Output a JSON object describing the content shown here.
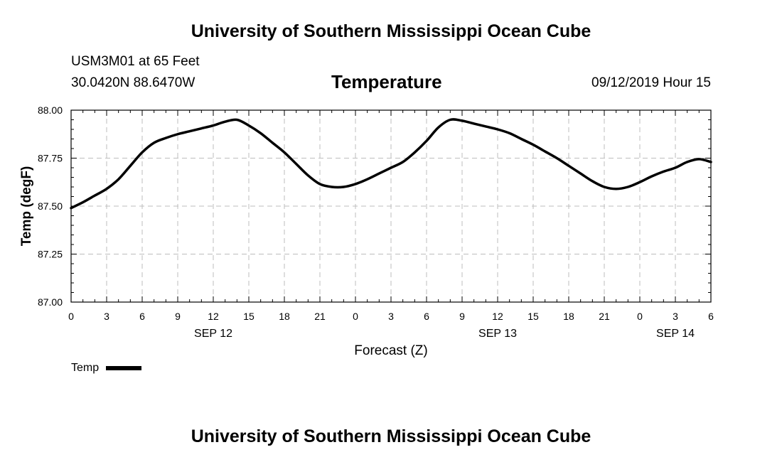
{
  "header": {
    "title": "University of Southern Mississippi Ocean Cube",
    "station": "USM3M01 at 65 Feet",
    "coords": "30.0420N 88.6470W",
    "variable": "Temperature",
    "run_time": "09/12/2019 Hour 15"
  },
  "footer": {
    "title": "University of Southern Mississippi Ocean Cube"
  },
  "legend": {
    "label": "Temp"
  },
  "chart_data": {
    "type": "line",
    "title": "Temperature",
    "xlabel": "Forecast (Z)",
    "ylabel": "Temp (degF)",
    "xlim": [
      0,
      54
    ],
    "ylim": [
      87.0,
      88.0
    ],
    "grid": true,
    "legend": "bottom-left",
    "yticks": [
      {
        "value": 87.0,
        "label": "87.00"
      },
      {
        "value": 87.25,
        "label": "87.25"
      },
      {
        "value": 87.5,
        "label": "87.50"
      },
      {
        "value": 87.75,
        "label": "87.75"
      },
      {
        "value": 88.0,
        "label": "88.00"
      }
    ],
    "xticks": [
      {
        "value": 0,
        "label": "0"
      },
      {
        "value": 3,
        "label": "3"
      },
      {
        "value": 6,
        "label": "6"
      },
      {
        "value": 9,
        "label": "9"
      },
      {
        "value": 12,
        "label": "12"
      },
      {
        "value": 15,
        "label": "15"
      },
      {
        "value": 18,
        "label": "18"
      },
      {
        "value": 21,
        "label": "21"
      },
      {
        "value": 24,
        "label": "0"
      },
      {
        "value": 27,
        "label": "3"
      },
      {
        "value": 30,
        "label": "6"
      },
      {
        "value": 33,
        "label": "9"
      },
      {
        "value": 36,
        "label": "12"
      },
      {
        "value": 39,
        "label": "15"
      },
      {
        "value": 42,
        "label": "18"
      },
      {
        "value": 45,
        "label": "21"
      },
      {
        "value": 48,
        "label": "0"
      },
      {
        "value": 51,
        "label": "3"
      },
      {
        "value": 54,
        "label": "6"
      }
    ],
    "date_labels": [
      {
        "value": 12,
        "label": "SEP 12"
      },
      {
        "value": 36,
        "label": "SEP 13"
      },
      {
        "value": 51,
        "label": "SEP 14"
      }
    ],
    "series": [
      {
        "name": "Temp",
        "x": [
          0,
          1,
          2,
          3,
          4,
          5,
          6,
          7,
          8,
          9,
          10,
          11,
          12,
          13,
          14,
          15,
          16,
          17,
          18,
          19,
          20,
          21,
          22,
          23,
          24,
          25,
          26,
          27,
          28,
          29,
          30,
          31,
          32,
          33,
          34,
          35,
          36,
          37,
          38,
          39,
          40,
          41,
          42,
          43,
          44,
          45,
          46,
          47,
          48,
          49,
          50,
          51,
          52,
          53,
          54
        ],
        "values": [
          87.49,
          87.52,
          87.555,
          87.59,
          87.64,
          87.71,
          87.78,
          87.83,
          87.855,
          87.875,
          87.89,
          87.905,
          87.92,
          87.94,
          87.95,
          87.92,
          87.88,
          87.83,
          87.78,
          87.72,
          87.66,
          87.615,
          87.6,
          87.6,
          87.615,
          87.64,
          87.67,
          87.7,
          87.73,
          87.78,
          87.84,
          87.91,
          87.95,
          87.945,
          87.93,
          87.915,
          87.9,
          87.88,
          87.85,
          87.82,
          87.785,
          87.75,
          87.71,
          87.67,
          87.63,
          87.6,
          87.59,
          87.6,
          87.625,
          87.655,
          87.68,
          87.7,
          87.73,
          87.745,
          87.73
        ]
      }
    ]
  }
}
